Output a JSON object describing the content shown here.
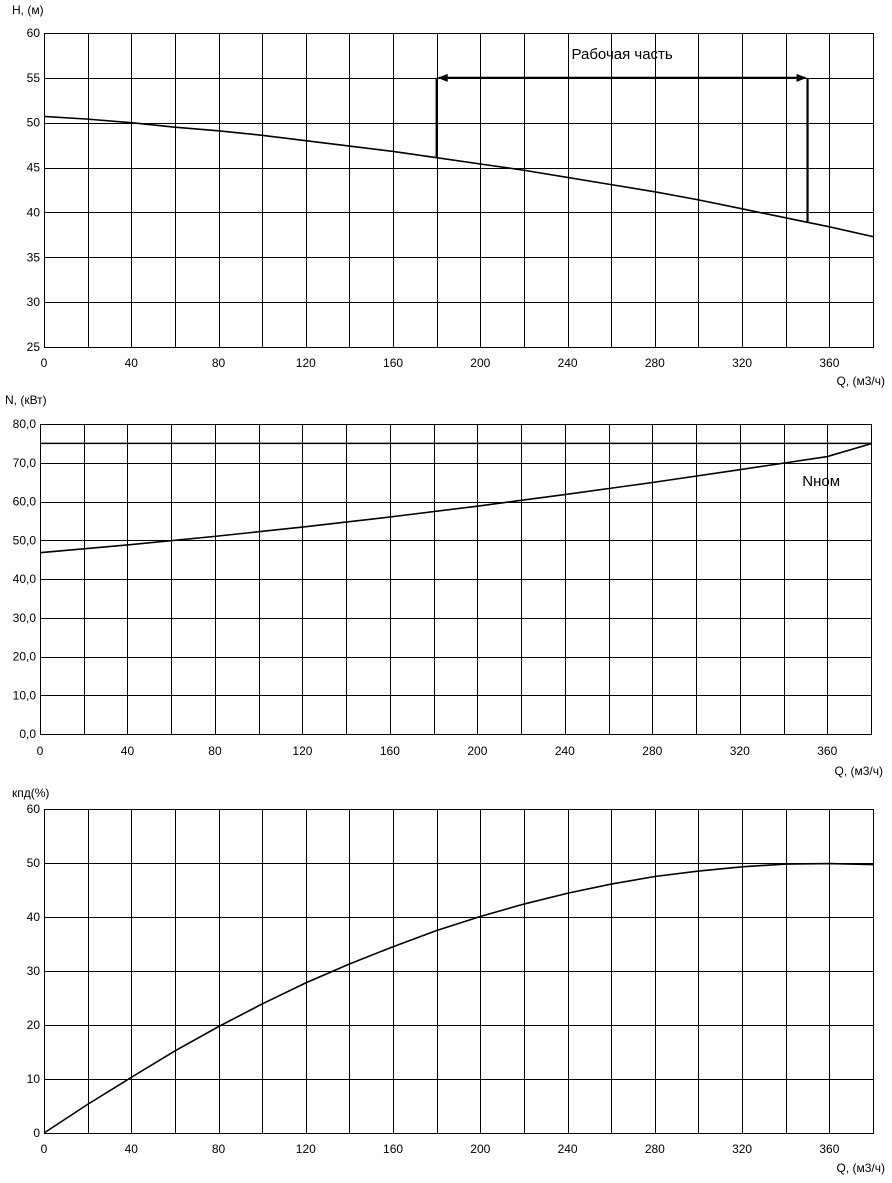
{
  "chart_data": [
    {
      "type": "line",
      "ylabel": "H, (м)",
      "xlabel": "Q, (м3/ч)",
      "xlim": [
        0,
        380
      ],
      "ylim": [
        25,
        60
      ],
      "x_ticks": [
        "0",
        "40",
        "80",
        "120",
        "160",
        "200",
        "240",
        "280",
        "320",
        "360"
      ],
      "y_ticks": [
        "25",
        "30",
        "35",
        "40",
        "45",
        "50",
        "55",
        "60"
      ],
      "x_grid_step": 20,
      "y_grid_step": 5,
      "grid": true,
      "series": [
        {
          "x": [
            0,
            20,
            40,
            60,
            80,
            100,
            120,
            140,
            160,
            180,
            200,
            220,
            240,
            260,
            280,
            300,
            320,
            340,
            360,
            380
          ],
          "y": [
            50.7,
            50.4,
            50.0,
            49.5,
            49.1,
            48.6,
            48.0,
            47.4,
            46.8,
            46.1,
            45.4,
            44.7,
            43.9,
            43.1,
            42.3,
            41.4,
            40.4,
            39.4,
            38.4,
            37.3
          ]
        }
      ],
      "annotation": {
        "text": "Рабочая часть",
        "x_start": 180,
        "x_end": 350,
        "arrow_y": 55
      }
    },
    {
      "type": "line",
      "ylabel": "N, (кВт)",
      "xlabel": "Q, (м3/ч)",
      "xlim": [
        0,
        380
      ],
      "ylim": [
        0,
        80
      ],
      "x_ticks": [
        "0",
        "40",
        "80",
        "120",
        "160",
        "200",
        "240",
        "280",
        "320",
        "360"
      ],
      "y_ticks": [
        "0,0",
        "10,0",
        "20,0",
        "30,0",
        "40,0",
        "50,0",
        "60,0",
        "70,0",
        "80,0"
      ],
      "x_grid_step": 20,
      "y_grid_step": 10,
      "grid": true,
      "series": [
        {
          "x": [
            0,
            40,
            80,
            120,
            160,
            200,
            240,
            280,
            320,
            360,
            380
          ],
          "y": [
            46.8,
            48.8,
            51.0,
            53.4,
            56.0,
            58.8,
            61.8,
            64.9,
            68.2,
            71.6,
            74.9
          ]
        },
        {
          "name": "Nном",
          "x": [
            0,
            380
          ],
          "y": [
            75,
            75
          ]
        }
      ],
      "annotation": {
        "text": "Nном",
        "x": 357,
        "y": 65
      }
    },
    {
      "type": "line",
      "ylabel": "кпд(%)",
      "xlabel": "Q, (м3/ч)",
      "xlim": [
        0,
        380
      ],
      "ylim": [
        0,
        60
      ],
      "x_ticks": [
        "0",
        "40",
        "80",
        "120",
        "160",
        "200",
        "240",
        "280",
        "320",
        "360"
      ],
      "y_ticks": [
        "0",
        "10",
        "20",
        "30",
        "40",
        "50",
        "60"
      ],
      "x_grid_step": 20,
      "y_grid_step": 10,
      "grid": true,
      "series": [
        {
          "x": [
            0,
            20,
            40,
            60,
            80,
            100,
            120,
            140,
            160,
            180,
            200,
            220,
            240,
            260,
            280,
            300,
            320,
            340,
            360,
            380
          ],
          "y": [
            0,
            5.3,
            10.3,
            15.2,
            19.7,
            23.9,
            27.8,
            31.3,
            34.5,
            37.5,
            40.1,
            42.4,
            44.4,
            46.1,
            47.5,
            48.5,
            49.3,
            49.8,
            49.9,
            49.7
          ]
        }
      ]
    }
  ]
}
